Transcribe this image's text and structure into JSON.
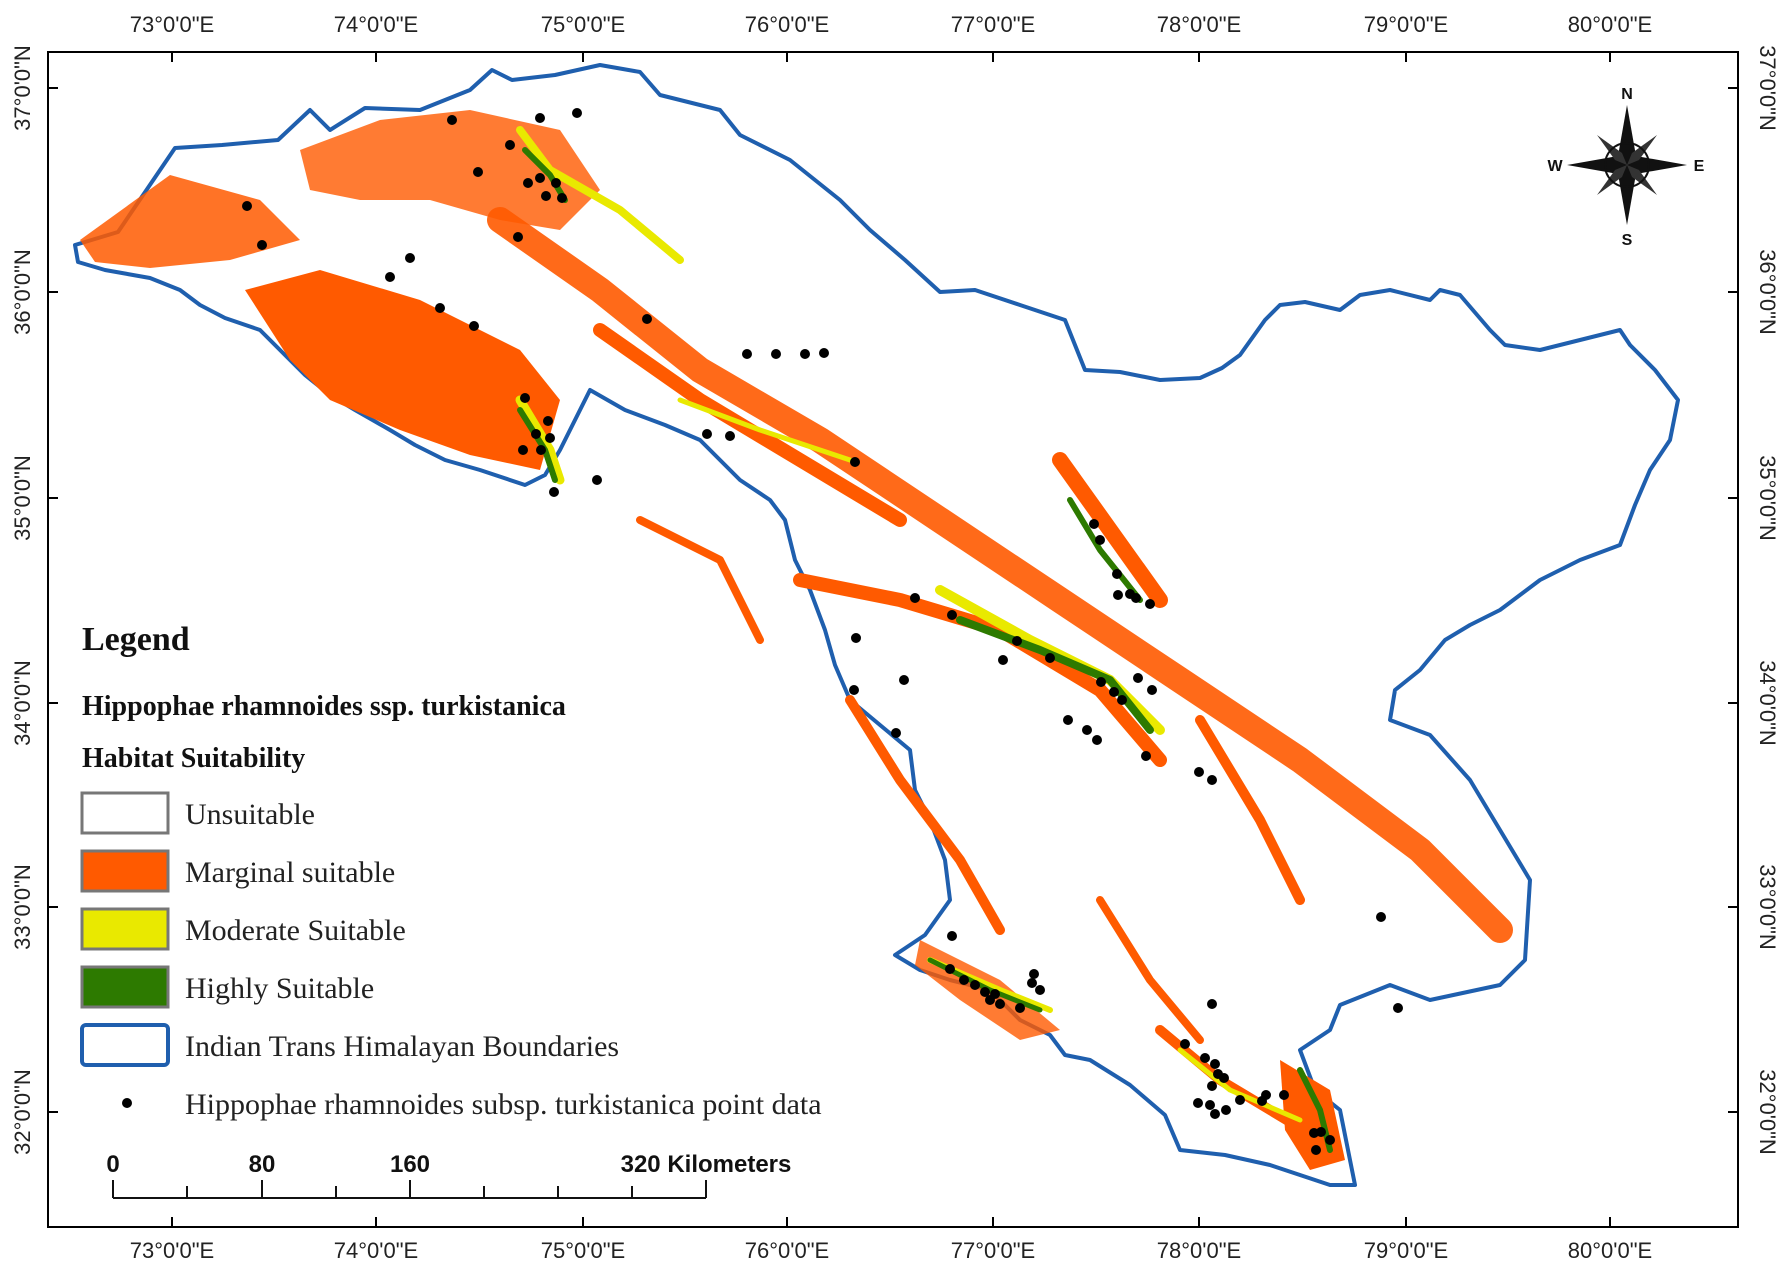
{
  "axes": {
    "longitude_labels": [
      "73°0'0\"E",
      "74°0'0\"E",
      "75°0'0\"E",
      "76°0'0\"E",
      "77°0'0\"E",
      "78°0'0\"E",
      "79°0'0\"E",
      "80°0'0\"E"
    ],
    "latitude_labels": [
      "37°0'0\"N",
      "36°0'0\"N",
      "35°0'0\"N",
      "34°0'0\"N",
      "33°0'0\"N",
      "32°0'0\"N"
    ]
  },
  "compass": {
    "n": "N",
    "s": "S",
    "e": "E",
    "w": "W"
  },
  "legend": {
    "title": "Legend",
    "species": "Hippophae rhamnoides ssp. turkistanica",
    "subtitle": "Habitat Suitability",
    "items": [
      {
        "label": "Unsuitable",
        "color": "#ffffff",
        "border": "#777777"
      },
      {
        "label": "Marginal suitable",
        "color": "#ff5a00",
        "border": "#777777"
      },
      {
        "label": "Moderate Suitable",
        "color": "#e9e900",
        "border": "#777777"
      },
      {
        "label": "Highly Suitable",
        "color": "#2d7a00",
        "border": "#777777"
      },
      {
        "label": "Indian Trans Himalayan Boundaries",
        "color": "#ffffff",
        "border": "#1f5fae"
      }
    ],
    "points_label": "Hippophae rhamnoides subsp. turkistanica point data"
  },
  "scale_bar": {
    "labels": [
      "0",
      "80",
      "160",
      "320 Kilometers"
    ]
  },
  "colors": {
    "boundary": "#1f5fae",
    "marginal": "#ff5a00",
    "moderate": "#e9e900",
    "high": "#2d7a00",
    "frame": "#000000"
  }
}
